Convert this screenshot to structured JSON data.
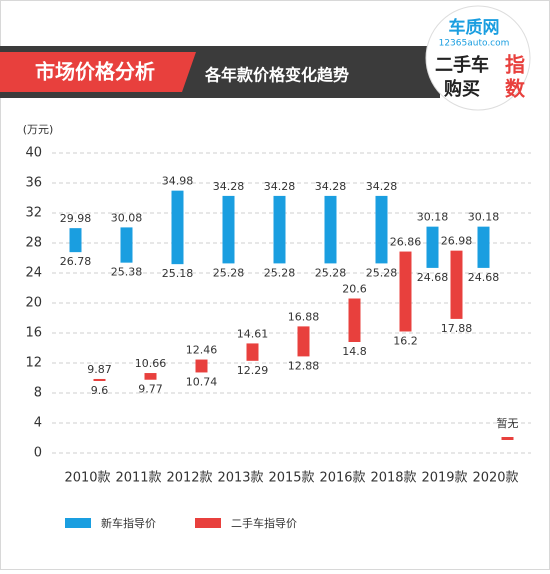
{
  "header": {
    "section": "市场价格分析",
    "subtitle": "各年款价格变化趋势",
    "logo": {
      "brand": "车质网",
      "site": "12365auto.com",
      "line1": "二手车",
      "mark1": "指",
      "line2": "购买",
      "mark2": "数"
    }
  },
  "chart_data": {
    "type": "range_bar",
    "y_label": "(万元)",
    "categories": [
      "2010款",
      "2011款",
      "2012款",
      "2013款",
      "2015款",
      "2016款",
      "2018款",
      "2019款",
      "2020款"
    ],
    "series": [
      {
        "name": "新车指导价",
        "color": "#1a9ee0",
        "values": [
          [
            29.98,
            26.78
          ],
          [
            30.08,
            25.38
          ],
          [
            34.98,
            25.18
          ],
          [
            34.28,
            25.28
          ],
          [
            34.28,
            25.28
          ],
          [
            34.28,
            25.28
          ],
          [
            34.28,
            25.28
          ],
          [
            30.18,
            24.68
          ],
          [
            30.18,
            24.68
          ]
        ]
      },
      {
        "name": "二手车指导价",
        "color": "#e8403d",
        "values": [
          [
            9.87,
            9.6
          ],
          [
            10.66,
            9.77
          ],
          [
            12.46,
            10.74
          ],
          [
            14.61,
            12.29
          ],
          [
            16.88,
            12.88
          ],
          [
            20.6,
            14.8
          ],
          [
            26.86,
            16.2
          ],
          [
            26.98,
            17.88
          ],
          null
        ],
        "value_labels": [
          null,
          null,
          null,
          null,
          null,
          null,
          null,
          null,
          "暂无"
        ]
      }
    ],
    "ylim": [
      0,
      40
    ],
    "yticks": [
      0,
      4,
      8,
      12,
      16,
      20,
      24,
      28,
      32,
      36,
      40
    ],
    "grid": true
  }
}
